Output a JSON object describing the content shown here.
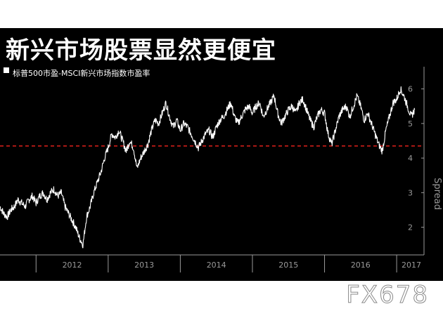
{
  "header": {
    "title": "新兴市场股票显然更便宜",
    "subtitle": "标普500市盈-MSCI新兴市场指数市盈率"
  },
  "watermark": "FX678",
  "colors": {
    "background": "#000000",
    "line": "#ffffff",
    "reference_line": "#e0201b",
    "axis": "#9a9a9a"
  },
  "chart_data": {
    "type": "line",
    "title": "新兴市场股票显然更便宜",
    "subtitle": "标普500市盈-MSCI新兴市场指数市盈率",
    "ylabel": "Spread",
    "xlim": [
      2011.5,
      2017.35
    ],
    "ylim": [
      1.2,
      6.5
    ],
    "x_tick_labels": [
      "2012",
      "2013",
      "2014",
      "2015",
      "2016",
      "2017"
    ],
    "y_ticks": [
      2,
      3,
      4,
      5,
      6
    ],
    "reference_line": {
      "y": 4.35,
      "style": "dashed"
    },
    "grid": false,
    "series": [
      {
        "x": [
          2011.5,
          2011.55,
          2011.6,
          2011.65,
          2011.7,
          2011.75,
          2011.8,
          2011.85,
          2011.9,
          2011.95,
          2012.0,
          2012.05,
          2012.1,
          2012.15,
          2012.2,
          2012.25,
          2012.3,
          2012.35,
          2012.4,
          2012.45,
          2012.5,
          2012.55,
          2012.6,
          2012.65,
          2012.7,
          2012.75,
          2012.8,
          2012.85,
          2012.9,
          2012.95,
          2013.0,
          2013.05,
          2013.1,
          2013.15,
          2013.2,
          2013.25,
          2013.3,
          2013.35,
          2013.4,
          2013.45,
          2013.5,
          2013.55,
          2013.6,
          2013.65,
          2013.7,
          2013.75,
          2013.8,
          2013.85,
          2013.9,
          2013.95,
          2014.0,
          2014.05,
          2014.1,
          2014.15,
          2014.2,
          2014.25,
          2014.3,
          2014.35,
          2014.4,
          2014.45,
          2014.5,
          2014.55,
          2014.6,
          2014.65,
          2014.7,
          2014.75,
          2014.8,
          2014.85,
          2014.9,
          2014.95,
          2015.0,
          2015.05,
          2015.1,
          2015.15,
          2015.2,
          2015.25,
          2015.3,
          2015.35,
          2015.4,
          2015.45,
          2015.5,
          2015.55,
          2015.6,
          2015.65,
          2015.7,
          2015.75,
          2015.8,
          2015.85,
          2015.9,
          2015.95,
          2016.0,
          2016.05,
          2016.1,
          2016.15,
          2016.2,
          2016.25,
          2016.3,
          2016.35,
          2016.4,
          2016.45,
          2016.5,
          2016.55,
          2016.6,
          2016.65,
          2016.7,
          2016.75,
          2016.8,
          2016.85,
          2016.9,
          2016.95,
          2017.0,
          2017.05,
          2017.1,
          2017.15,
          2017.2,
          2017.25
        ],
        "y": [
          2.6,
          2.4,
          2.3,
          2.5,
          2.6,
          2.8,
          2.7,
          2.6,
          2.8,
          2.9,
          2.7,
          2.9,
          3.0,
          2.8,
          3.0,
          3.1,
          2.9,
          3.0,
          2.6,
          2.4,
          2.2,
          2.0,
          1.7,
          1.5,
          2.3,
          2.6,
          3.0,
          3.3,
          3.6,
          4.0,
          4.3,
          4.7,
          4.6,
          4.8,
          4.5,
          4.2,
          4.5,
          4.3,
          3.7,
          4.0,
          4.2,
          4.4,
          4.8,
          5.1,
          5.0,
          5.3,
          5.6,
          5.2,
          4.9,
          5.1,
          4.8,
          5.0,
          4.9,
          4.7,
          4.5,
          4.3,
          4.5,
          4.7,
          4.8,
          4.6,
          4.9,
          5.1,
          5.2,
          5.4,
          5.6,
          5.2,
          5.0,
          5.2,
          5.4,
          5.5,
          5.3,
          5.5,
          5.6,
          5.2,
          5.4,
          5.6,
          5.8,
          5.3,
          5.0,
          5.2,
          5.4,
          5.5,
          5.3,
          5.6,
          5.7,
          5.4,
          5.1,
          4.9,
          5.2,
          5.4,
          5.3,
          4.7,
          4.4,
          4.8,
          5.2,
          5.4,
          5.5,
          5.2,
          5.5,
          5.8,
          5.5,
          5.1,
          5.3,
          5.0,
          4.7,
          4.4,
          4.2,
          4.8,
          5.2,
          5.6,
          5.7,
          6.0,
          5.8,
          5.5,
          5.2,
          5.4
        ]
      }
    ]
  }
}
